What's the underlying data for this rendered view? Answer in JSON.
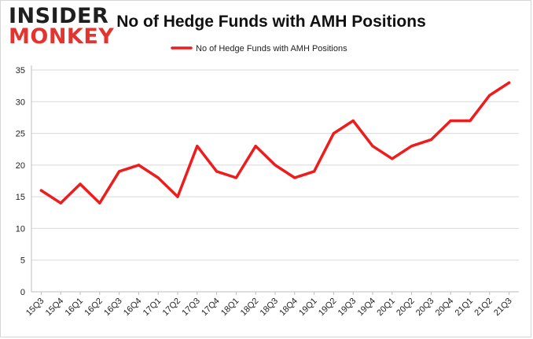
{
  "logo": {
    "line1": "INSIDER",
    "line2": "MONKEY"
  },
  "colors": {
    "series": "#ee1c1c",
    "grid": "#d9d9d9",
    "axis": "#bdbdbd",
    "logo_accent": "#e3342f"
  },
  "chart_data": {
    "type": "line",
    "title": "No of Hedge Funds with AMH Positions",
    "xlabel": "",
    "ylabel": "",
    "ylim": [
      0,
      35
    ],
    "yticks": [
      0,
      5,
      10,
      15,
      20,
      25,
      30,
      35
    ],
    "grid": true,
    "legend_position": "top-center",
    "categories": [
      "15Q3",
      "15Q4",
      "16Q1",
      "16Q2",
      "16Q3",
      "16Q4",
      "17Q1",
      "17Q2",
      "17Q3",
      "17Q4",
      "18Q1",
      "18Q2",
      "18Q3",
      "18Q4",
      "19Q1",
      "19Q2",
      "19Q3",
      "19Q4",
      "20Q1",
      "20Q2",
      "20Q3",
      "20Q4",
      "21Q1",
      "21Q2",
      "21Q3"
    ],
    "series": [
      {
        "name": "No of Hedge Funds with AMH Positions",
        "values": [
          16,
          14,
          17,
          14,
          19,
          20,
          18,
          15,
          23,
          19,
          18,
          23,
          20,
          18,
          19,
          25,
          27,
          23,
          21,
          23,
          24,
          27,
          27,
          31,
          33
        ]
      }
    ]
  }
}
